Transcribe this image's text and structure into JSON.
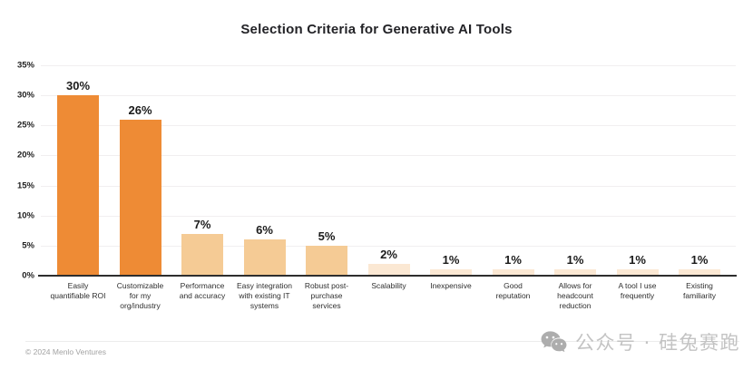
{
  "footer": {
    "copyright": "© 2024 Menlo Ventures"
  },
  "watermark": {
    "icon": "wechat-icon",
    "text": "公众号 · 硅兔赛跑"
  },
  "colors": {
    "bar_primary": "#EE8B35",
    "bar_secondary": "#F5CB95",
    "bar_tertiary": "#FBE8D3",
    "axis_line": "#2E2E2E",
    "gridline": "#F1EFF0",
    "label_dark": "#1B1B1B",
    "footer_gray": "#A2A2A2",
    "watermark_gray": "#C3C3C3"
  },
  "chart_data": {
    "type": "bar",
    "title": "Selection Criteria for Generative AI Tools",
    "categories": [
      "Easily quantifiable ROI",
      "Customizable for my org/industry",
      "Performance and accuracy",
      "Easy integration with existing IT systems",
      "Robust post-purchase services",
      "Scalability",
      "Inexpensive",
      "Good reputation",
      "Allows for headcount reduction",
      "A tool I use frequently",
      "Existing familiarity"
    ],
    "category_label_lines": [
      [
        "Easily",
        "quantifiable ROI"
      ],
      [
        "Customizable",
        "for my",
        "org/industry"
      ],
      [
        "Performance",
        "and accuracy"
      ],
      [
        "Easy integration",
        "with existing IT",
        "systems"
      ],
      [
        "Robust post-",
        "purchase",
        "services"
      ],
      [
        "Scalability"
      ],
      [
        "Inexpensive"
      ],
      [
        "Good",
        "reputation"
      ],
      [
        "Allows for",
        "headcount",
        "reduction"
      ],
      [
        "A tool I use",
        "frequently"
      ],
      [
        "Existing",
        "familiarity"
      ]
    ],
    "values": [
      30,
      26,
      7,
      6,
      5,
      2,
      1,
      1,
      1,
      1,
      1
    ],
    "value_labels": [
      "30%",
      "26%",
      "7%",
      "6%",
      "5%",
      "2%",
      "1%",
      "1%",
      "1%",
      "1%",
      "1%"
    ],
    "bar_colors": [
      "#EE8B35",
      "#EE8B35",
      "#F5CB95",
      "#F5CB95",
      "#F5CB95",
      "#FBE8D3",
      "#FBE8D3",
      "#FBE8D3",
      "#FBE8D3",
      "#FBE8D3",
      "#FBE8D3"
    ],
    "xlabel": "",
    "ylabel": "",
    "ylim": [
      0,
      35
    ],
    "yticks": [
      {
        "value": 35,
        "label": "35%"
      },
      {
        "value": 30,
        "label": "30%"
      },
      {
        "value": 25,
        "label": "25%"
      },
      {
        "value": 20,
        "label": "20%"
      },
      {
        "value": 15,
        "label": "15%"
      },
      {
        "value": 10,
        "label": "10%"
      },
      {
        "value": 5,
        "label": "5%"
      },
      {
        "value": 0,
        "label": "0%"
      }
    ],
    "grid": true,
    "legend_position": "none"
  }
}
